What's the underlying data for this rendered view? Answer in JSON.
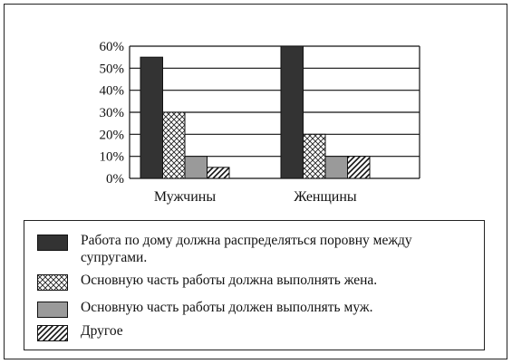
{
  "chart_data": {
    "type": "bar",
    "categories": [
      "Мужчины",
      "Женщины"
    ],
    "series": [
      {
        "name": "Работа по дому должна распределяться поровну между супругами.",
        "values": [
          55,
          60
        ],
        "pattern": "solid-dark"
      },
      {
        "name": "Основную часть работы должна выполнять жена.",
        "values": [
          30,
          20
        ],
        "pattern": "crosshatch"
      },
      {
        "name": "Основную часть работы должен выполнять муж.",
        "values": [
          10,
          10
        ],
        "pattern": "solid-gray"
      },
      {
        "name": "Другое",
        "values": [
          5,
          10
        ],
        "pattern": "diagonal"
      }
    ],
    "ylim": [
      0,
      60
    ],
    "yticks": [
      "0%",
      "10%",
      "20%",
      "30%",
      "40%",
      "50%",
      "60%"
    ],
    "grid": true,
    "legend_position": "bottom",
    "colors": {
      "dark": "#333333",
      "gray": "#9a9a9a",
      "line": "#111111"
    }
  }
}
